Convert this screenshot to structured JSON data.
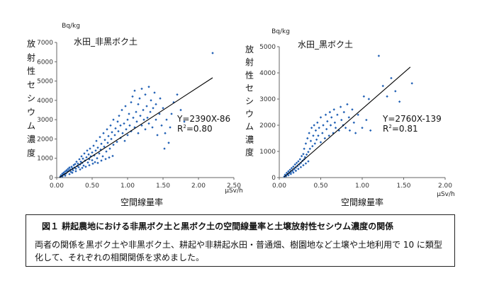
{
  "chart_data": [
    {
      "type": "scatter",
      "title": "水田_非黒ボク土",
      "xlabel": "空間線量率",
      "x_unit": "μSv/h",
      "ylabel": "放射性セシウム濃度",
      "y_unit": "Bq/kg",
      "xlim": [
        0,
        2.5
      ],
      "ylim": [
        0,
        7000
      ],
      "xticks": [
        "0.00",
        "0.50",
        "1.00",
        "1.50",
        "2.00",
        "2.50"
      ],
      "yticks": [
        "0",
        "1000",
        "2000",
        "3000",
        "4000",
        "5000",
        "6000",
        "7000"
      ],
      "regression": {
        "slope": 2390,
        "intercept": -86,
        "x_range": [
          0.04,
          2.2
        ]
      },
      "equation": "Y=2390X-86",
      "r2_label": "R",
      "r2_exp": "2",
      "r2_value": "=0.80",
      "marker_color": "#1F5FB4",
      "points": [
        [
          0.05,
          40
        ],
        [
          0.06,
          120
        ],
        [
          0.07,
          80
        ],
        [
          0.08,
          200
        ],
        [
          0.09,
          150
        ],
        [
          0.1,
          260
        ],
        [
          0.11,
          180
        ],
        [
          0.12,
          320
        ],
        [
          0.13,
          210
        ],
        [
          0.14,
          380
        ],
        [
          0.15,
          300
        ],
        [
          0.16,
          450
        ],
        [
          0.17,
          350
        ],
        [
          0.18,
          520
        ],
        [
          0.19,
          420
        ],
        [
          0.2,
          300
        ],
        [
          0.21,
          560
        ],
        [
          0.22,
          480
        ],
        [
          0.23,
          380
        ],
        [
          0.24,
          650
        ],
        [
          0.25,
          520
        ],
        [
          0.26,
          700
        ],
        [
          0.27,
          460
        ],
        [
          0.28,
          820
        ],
        [
          0.29,
          600
        ],
        [
          0.3,
          720
        ],
        [
          0.31,
          540
        ],
        [
          0.32,
          950
        ],
        [
          0.33,
          680
        ],
        [
          0.34,
          820
        ],
        [
          0.35,
          1100
        ],
        [
          0.36,
          760
        ],
        [
          0.37,
          980
        ],
        [
          0.38,
          620
        ],
        [
          0.39,
          1250
        ],
        [
          0.4,
          880
        ],
        [
          0.42,
          1050
        ],
        [
          0.43,
          1400
        ],
        [
          0.44,
          780
        ],
        [
          0.45,
          1200
        ],
        [
          0.46,
          950
        ],
        [
          0.47,
          1500
        ],
        [
          0.48,
          1100
        ],
        [
          0.5,
          1300
        ],
        [
          0.5,
          900
        ],
        [
          0.52,
          1650
        ],
        [
          0.53,
          1150
        ],
        [
          0.55,
          1400
        ],
        [
          0.56,
          1900
        ],
        [
          0.57,
          1000
        ],
        [
          0.58,
          1550
        ],
        [
          0.6,
          1250
        ],
        [
          0.61,
          2100
        ],
        [
          0.62,
          1450
        ],
        [
          0.63,
          1750
        ],
        [
          0.65,
          1100
        ],
        [
          0.66,
          2300
        ],
        [
          0.67,
          1600
        ],
        [
          0.68,
          1950
        ],
        [
          0.7,
          1350
        ],
        [
          0.71,
          2500
        ],
        [
          0.72,
          1800
        ],
        [
          0.73,
          2150
        ],
        [
          0.75,
          1500
        ],
        [
          0.76,
          2700
        ],
        [
          0.77,
          2000
        ],
        [
          0.78,
          2350
        ],
        [
          0.8,
          1700
        ],
        [
          0.8,
          3000
        ],
        [
          0.82,
          2200
        ],
        [
          0.83,
          2550
        ],
        [
          0.85,
          1850
        ],
        [
          0.86,
          2900
        ],
        [
          0.87,
          2400
        ],
        [
          0.88,
          3200
        ],
        [
          0.9,
          2050
        ],
        [
          0.9,
          2700
        ],
        [
          0.92,
          3500
        ],
        [
          0.93,
          2300
        ],
        [
          0.95,
          2800
        ],
        [
          0.96,
          1900
        ],
        [
          0.97,
          3700
        ],
        [
          0.98,
          2500
        ],
        [
          1.0,
          3000
        ],
        [
          1.0,
          2200
        ],
        [
          1.02,
          3300
        ],
        [
          1.03,
          2700
        ],
        [
          1.05,
          3900
        ],
        [
          1.05,
          2400
        ],
        [
          1.07,
          4200
        ],
        [
          1.08,
          3100
        ],
        [
          1.1,
          2600
        ],
        [
          1.1,
          4500
        ],
        [
          1.12,
          3400
        ],
        [
          1.13,
          2900
        ],
        [
          1.15,
          3800
        ],
        [
          1.15,
          2300
        ],
        [
          1.17,
          4100
        ],
        [
          1.18,
          3200
        ],
        [
          1.2,
          2700
        ],
        [
          1.2,
          4600
        ],
        [
          1.22,
          3500
        ],
        [
          1.23,
          3000
        ],
        [
          1.25,
          4300
        ],
        [
          1.25,
          2500
        ],
        [
          1.27,
          3700
        ],
        [
          1.28,
          3100
        ],
        [
          1.3,
          4700
        ],
        [
          1.3,
          2800
        ],
        [
          1.32,
          3400
        ],
        [
          1.33,
          4000
        ],
        [
          1.35,
          2600
        ],
        [
          1.36,
          3600
        ],
        [
          1.38,
          4400
        ],
        [
          1.4,
          3000
        ],
        [
          1.4,
          3800
        ],
        [
          1.42,
          2200
        ],
        [
          1.45,
          3300
        ],
        [
          1.46,
          4100
        ],
        [
          1.48,
          2700
        ],
        [
          1.5,
          3600
        ],
        [
          1.52,
          1500
        ],
        [
          1.53,
          2300
        ],
        [
          1.55,
          3000
        ],
        [
          1.58,
          1800
        ],
        [
          1.6,
          2600
        ],
        [
          1.62,
          3300
        ],
        [
          1.65,
          3900
        ],
        [
          1.7,
          4300
        ],
        [
          1.75,
          3500
        ],
        [
          1.8,
          2900
        ],
        [
          2.2,
          6450
        ],
        [
          0.08,
          60
        ],
        [
          0.12,
          100
        ],
        [
          0.18,
          180
        ],
        [
          0.22,
          250
        ],
        [
          0.27,
          330
        ],
        [
          0.33,
          420
        ],
        [
          0.36,
          500
        ],
        [
          0.41,
          560
        ],
        [
          0.46,
          640
        ],
        [
          0.51,
          720
        ],
        [
          0.54,
          800
        ],
        [
          0.58,
          760
        ],
        [
          0.63,
          880
        ],
        [
          0.69,
          960
        ],
        [
          0.74,
          1040
        ],
        [
          0.79,
          1120
        ]
      ]
    },
    {
      "type": "scatter",
      "title": "水田_黒ボク土",
      "xlabel": "空間線量率",
      "x_unit": "μSv/h",
      "ylabel": "放射性セシウム濃度",
      "y_unit": "Bq/kg",
      "xlim": [
        0,
        2.0
      ],
      "ylim": [
        0,
        5000
      ],
      "xticks": [
        "0.00",
        "0.50",
        "1.00",
        "1.50",
        "2.00"
      ],
      "yticks": [
        "0",
        "1000",
        "2000",
        "3000",
        "4000",
        "5000"
      ],
      "regression": {
        "slope": 2760,
        "intercept": -139,
        "x_range": [
          0.06,
          1.58
        ]
      },
      "equation": "Y=2760X-139",
      "r2_label": "R",
      "r2_exp": "2",
      "r2_value": "=0.81",
      "marker_color": "#1F5FB4",
      "points": [
        [
          0.06,
          40
        ],
        [
          0.07,
          110
        ],
        [
          0.08,
          70
        ],
        [
          0.09,
          180
        ],
        [
          0.1,
          130
        ],
        [
          0.11,
          240
        ],
        [
          0.12,
          170
        ],
        [
          0.13,
          300
        ],
        [
          0.14,
          210
        ],
        [
          0.15,
          360
        ],
        [
          0.16,
          260
        ],
        [
          0.17,
          420
        ],
        [
          0.18,
          320
        ],
        [
          0.19,
          500
        ],
        [
          0.2,
          380
        ],
        [
          0.21,
          560
        ],
        [
          0.22,
          440
        ],
        [
          0.23,
          620
        ],
        [
          0.24,
          500
        ],
        [
          0.25,
          700
        ],
        [
          0.26,
          560
        ],
        [
          0.27,
          820
        ],
        [
          0.28,
          640
        ],
        [
          0.29,
          900
        ],
        [
          0.3,
          700
        ],
        [
          0.3,
          1100
        ],
        [
          0.31,
          780
        ],
        [
          0.32,
          1300
        ],
        [
          0.33,
          880
        ],
        [
          0.34,
          1500
        ],
        [
          0.35,
          980
        ],
        [
          0.36,
          1700
        ],
        [
          0.37,
          1100
        ],
        [
          0.38,
          1400
        ],
        [
          0.39,
          1900
        ],
        [
          0.4,
          1200
        ],
        [
          0.41,
          1600
        ],
        [
          0.42,
          2000
        ],
        [
          0.43,
          1300
        ],
        [
          0.44,
          1800
        ],
        [
          0.45,
          1450
        ],
        [
          0.46,
          2100
        ],
        [
          0.47,
          1600
        ],
        [
          0.48,
          1900
        ],
        [
          0.5,
          1350
        ],
        [
          0.5,
          2300
        ],
        [
          0.52,
          1700
        ],
        [
          0.53,
          2000
        ],
        [
          0.55,
          1500
        ],
        [
          0.56,
          2400
        ],
        [
          0.57,
          1850
        ],
        [
          0.58,
          2150
        ],
        [
          0.6,
          1600
        ],
        [
          0.61,
          2500
        ],
        [
          0.62,
          2000
        ],
        [
          0.63,
          2300
        ],
        [
          0.65,
          1700
        ],
        [
          0.66,
          2600
        ],
        [
          0.67,
          2100
        ],
        [
          0.68,
          1900
        ],
        [
          0.7,
          2400
        ],
        [
          0.72,
          1800
        ],
        [
          0.74,
          2700
        ],
        [
          0.75,
          2200
        ],
        [
          0.77,
          2000
        ],
        [
          0.78,
          2500
        ],
        [
          0.8,
          1900
        ],
        [
          0.82,
          2800
        ],
        [
          0.84,
          2300
        ],
        [
          0.85,
          1800
        ],
        [
          0.88,
          2600
        ],
        [
          0.9,
          2100
        ],
        [
          0.92,
          1700
        ],
        [
          0.95,
          2400
        ],
        [
          1.0,
          1900
        ],
        [
          1.02,
          3100
        ],
        [
          1.05,
          2200
        ],
        [
          1.08,
          3000
        ],
        [
          1.1,
          1800
        ],
        [
          1.2,
          4650
        ],
        [
          1.25,
          3500
        ],
        [
          1.3,
          3100
        ],
        [
          1.35,
          3800
        ],
        [
          1.4,
          3300
        ],
        [
          1.45,
          2900
        ],
        [
          1.6,
          3600
        ],
        [
          0.08,
          50
        ],
        [
          0.11,
          90
        ],
        [
          0.14,
          140
        ],
        [
          0.17,
          190
        ],
        [
          0.2,
          260
        ],
        [
          0.23,
          330
        ],
        [
          0.26,
          400
        ],
        [
          0.29,
          470
        ],
        [
          0.32,
          540
        ],
        [
          0.35,
          620
        ]
      ]
    }
  ],
  "caption": {
    "title": "図１ 耕起農地における非黒ボク土と黒ボク土の空間線量率と土壌放射性セシウム濃度の関係",
    "body": "両者の関係を黒ボク土や非黒ボク土、耕起や非耕起水田・普通畑、樹園地など土壌や土地利用で 10 に類型化して、それぞれの相関関係を求めました。"
  }
}
